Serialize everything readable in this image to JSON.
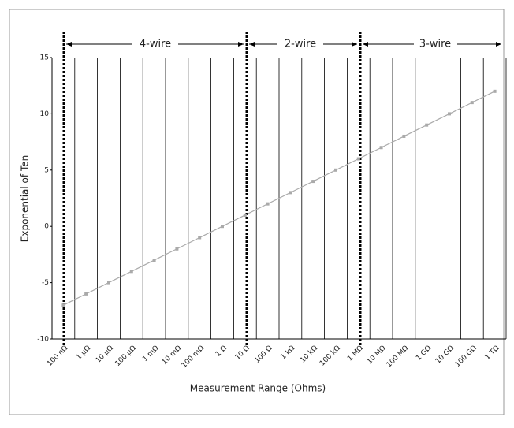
{
  "chart_data": {
    "type": "line",
    "ylabel": "Exponential of Ten",
    "xlabel": "Measurement Range (Ohms)",
    "annotations": [
      "4-wire",
      "2-wire",
      "3-wire"
    ],
    "categories": [
      "100 nΩ",
      "1 µΩ",
      "10 µΩ",
      "100 µΩ",
      "1 mΩ",
      "10 mΩ",
      "100 mΩ",
      "1 Ω",
      "10 Ω",
      "100 Ω",
      "1 kΩ",
      "10 kΩ",
      "100 kΩ",
      "1 MΩ",
      "10 MΩ",
      "100 MΩ",
      "1 GΩ",
      "10 GΩ",
      "100 GΩ",
      "1 TΩ"
    ],
    "values": [
      -7,
      -6,
      -5,
      -4,
      -3,
      -2,
      -1,
      0,
      1,
      2,
      3,
      4,
      5,
      6,
      7,
      8,
      9,
      10,
      11,
      12
    ],
    "color": "#aaaaaa",
    "ylim": [
      -10,
      15
    ],
    "yticks": [
      -10,
      -5,
      0,
      5,
      10,
      15
    ],
    "grid": true
  }
}
